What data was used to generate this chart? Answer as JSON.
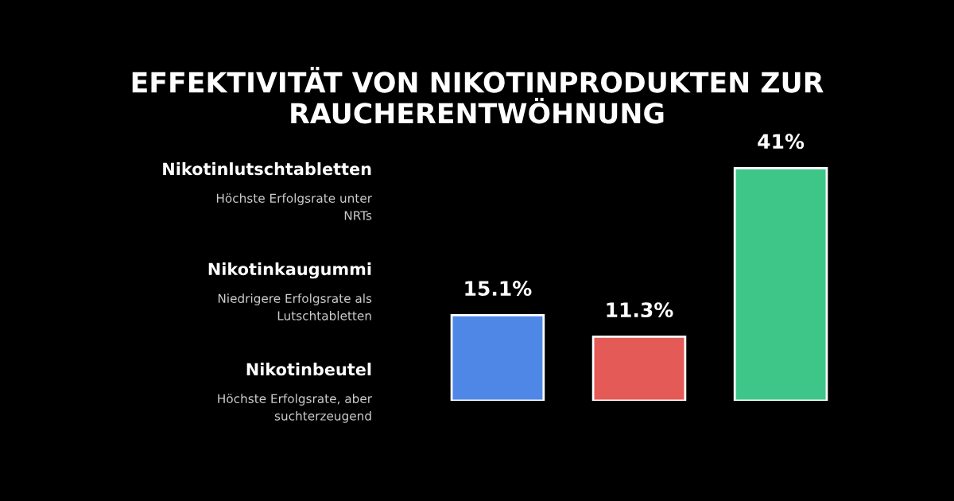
{
  "chart_data": {
    "type": "bar",
    "title": "EFFEKTIVITÄT VON NIKOTINPRODUKTEN ZUR RAUCHERENTWÖHNUNG",
    "categories": [
      null,
      null,
      null
    ],
    "values": [
      15.1,
      11.3,
      41
    ],
    "value_labels": [
      "15.1%",
      "11.3%",
      "41%"
    ],
    "colors": [
      "#4f87e6",
      "#e35a57",
      "#3ec688"
    ],
    "annotations": [
      "Nikotinlutschtabletten",
      "Höchste Erfolgsrate unter\nNRTs",
      "Nikotinkaugummi",
      "Niedrigere Erfolgsrate als\nLutschtabletten",
      "Nikotinbeutel",
      "Höchste Erfolgsrate, aber\nsuchterzeugend"
    ]
  }
}
